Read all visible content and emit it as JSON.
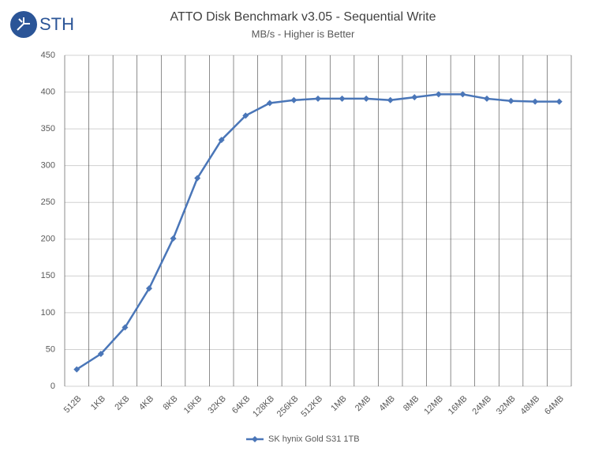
{
  "logo": "STH",
  "chart_data": {
    "type": "line",
    "title": "ATTO Disk Benchmark v3.05 -  Sequential Write",
    "subtitle": "MB/s - Higher is Better",
    "categories": [
      "512B",
      "1KB",
      "2KB",
      "4KB",
      "8KB",
      "16KB",
      "32KB",
      "64KB",
      "128KB",
      "256KB",
      "512KB",
      "1MB",
      "2MB",
      "4MB",
      "8MB",
      "12MB",
      "16MB",
      "24MB",
      "32MB",
      "48MB",
      "64MB"
    ],
    "series": [
      {
        "name": "SK hynix Gold S31 1TB",
        "color": "#4a76b8",
        "values": [
          23,
          44,
          80,
          133,
          201,
          283,
          335,
          368,
          385,
          389,
          391,
          391,
          391,
          389,
          393,
          397,
          397,
          391,
          388,
          387,
          387
        ]
      }
    ],
    "ylim": [
      0,
      450
    ],
    "yticks": [
      0,
      50,
      100,
      150,
      200,
      250,
      300,
      350,
      400,
      450
    ],
    "grid": true,
    "legend": "bottom"
  }
}
